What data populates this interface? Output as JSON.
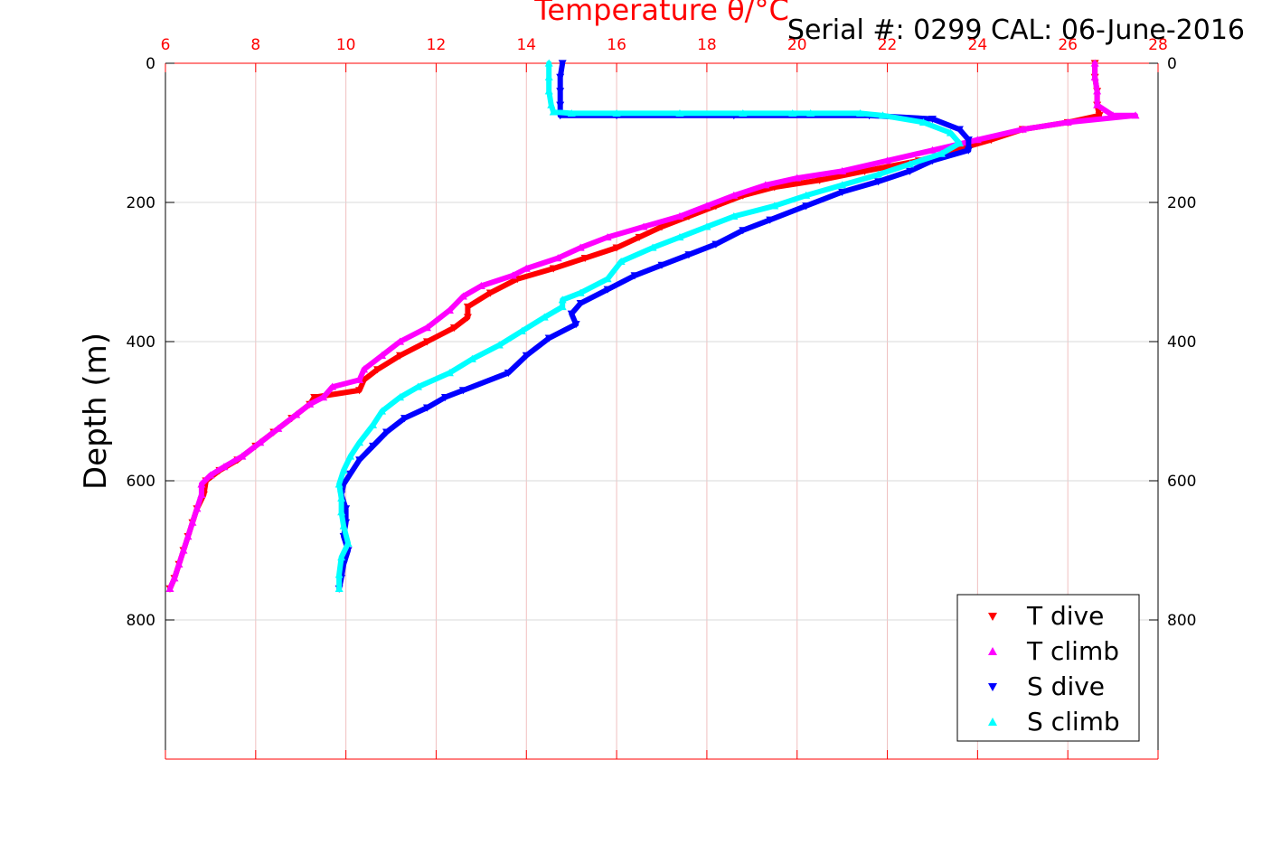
{
  "serial_text": "Serial #: 0299 CAL: 06-June-2016",
  "colors": {
    "axis_top": "#ff0000",
    "axis": "#000000",
    "grid_x": "#f0c0c0",
    "grid_y": "#d8d8d8",
    "t_dive": "#ff0000",
    "t_climb": "#ff00ff",
    "s_dive": "#0000ff",
    "s_climb": "#00ffff"
  },
  "chart_data": {
    "type": "scatter",
    "title": "Temperature θ/°C",
    "xlabel": "Temperature θ/°C",
    "ylabel": "Depth (m)",
    "x_axis_position": "top",
    "xlim": [
      6,
      28
    ],
    "ylim": [
      1000,
      0
    ],
    "y_reversed": true,
    "xticks": [
      6,
      8,
      10,
      12,
      14,
      16,
      18,
      20,
      22,
      24,
      26,
      28
    ],
    "yticks": [
      0,
      200,
      400,
      600,
      800
    ],
    "grid": true,
    "legend_position": "bottom-right",
    "series": [
      {
        "name": "T dive",
        "marker": "triangle-down",
        "color": "#ff0000",
        "points": [
          [
            26.6,
            0
          ],
          [
            26.6,
            20
          ],
          [
            26.65,
            40
          ],
          [
            26.65,
            60
          ],
          [
            26.7,
            75
          ],
          [
            26.0,
            85
          ],
          [
            25.0,
            95
          ],
          [
            24.3,
            110
          ],
          [
            23.5,
            125
          ],
          [
            22.7,
            140
          ],
          [
            21.5,
            155
          ],
          [
            20.5,
            168
          ],
          [
            19.5,
            178
          ],
          [
            18.8,
            190
          ],
          [
            18.2,
            205
          ],
          [
            17.6,
            220
          ],
          [
            17.0,
            235
          ],
          [
            16.5,
            250
          ],
          [
            16.0,
            265
          ],
          [
            15.3,
            280
          ],
          [
            14.6,
            295
          ],
          [
            13.8,
            310
          ],
          [
            13.2,
            330
          ],
          [
            12.7,
            350
          ],
          [
            12.7,
            365
          ],
          [
            12.4,
            380
          ],
          [
            11.8,
            400
          ],
          [
            11.2,
            420
          ],
          [
            10.7,
            440
          ],
          [
            10.4,
            455
          ],
          [
            10.3,
            470
          ],
          [
            9.3,
            480
          ],
          [
            9.2,
            490
          ],
          [
            8.8,
            510
          ],
          [
            8.4,
            530
          ],
          [
            8.0,
            550
          ],
          [
            7.6,
            570
          ],
          [
            7.2,
            585
          ],
          [
            6.9,
            600
          ],
          [
            6.85,
            620
          ],
          [
            6.7,
            640
          ],
          [
            6.6,
            660
          ],
          [
            6.5,
            680
          ],
          [
            6.4,
            700
          ],
          [
            6.3,
            720
          ],
          [
            6.2,
            740
          ],
          [
            6.1,
            755
          ]
        ]
      },
      {
        "name": "T climb",
        "marker": "triangle-up",
        "color": "#ff00ff",
        "points": [
          [
            26.6,
            0
          ],
          [
            26.6,
            20
          ],
          [
            26.65,
            40
          ],
          [
            26.65,
            60
          ],
          [
            27.0,
            75
          ],
          [
            27.5,
            75
          ],
          [
            26.0,
            85
          ],
          [
            25.0,
            95
          ],
          [
            24.0,
            110
          ],
          [
            23.0,
            125
          ],
          [
            22.0,
            140
          ],
          [
            21.0,
            155
          ],
          [
            20.0,
            165
          ],
          [
            19.3,
            175
          ],
          [
            18.6,
            190
          ],
          [
            18.0,
            205
          ],
          [
            17.4,
            220
          ],
          [
            16.6,
            235
          ],
          [
            15.8,
            250
          ],
          [
            15.2,
            265
          ],
          [
            14.7,
            280
          ],
          [
            14.0,
            295
          ],
          [
            13.7,
            305
          ],
          [
            13.0,
            320
          ],
          [
            12.6,
            335
          ],
          [
            12.3,
            355
          ],
          [
            11.8,
            380
          ],
          [
            11.2,
            400
          ],
          [
            10.8,
            420
          ],
          [
            10.4,
            440
          ],
          [
            10.3,
            455
          ],
          [
            9.7,
            465
          ],
          [
            9.5,
            480
          ],
          [
            9.2,
            490
          ],
          [
            8.9,
            505
          ],
          [
            8.5,
            525
          ],
          [
            8.1,
            545
          ],
          [
            7.7,
            565
          ],
          [
            7.3,
            580
          ],
          [
            7.0,
            592
          ],
          [
            6.8,
            605
          ],
          [
            6.8,
            620
          ],
          [
            6.7,
            640
          ],
          [
            6.6,
            660
          ],
          [
            6.5,
            680
          ],
          [
            6.4,
            700
          ],
          [
            6.3,
            720
          ],
          [
            6.2,
            740
          ],
          [
            6.1,
            755
          ]
        ]
      },
      {
        "name": "S dive",
        "marker": "triangle-down",
        "color": "#0000ff",
        "points": [
          [
            14.8,
            0
          ],
          [
            14.75,
            20
          ],
          [
            14.75,
            40
          ],
          [
            14.75,
            60
          ],
          [
            14.75,
            75
          ],
          [
            16.0,
            75
          ],
          [
            18.6,
            75
          ],
          [
            21.6,
            75
          ],
          [
            23.0,
            80
          ],
          [
            23.6,
            95
          ],
          [
            23.8,
            110
          ],
          [
            23.8,
            125
          ],
          [
            23.0,
            140
          ],
          [
            22.5,
            155
          ],
          [
            21.8,
            170
          ],
          [
            21.0,
            185
          ],
          [
            20.2,
            205
          ],
          [
            19.4,
            225
          ],
          [
            18.8,
            240
          ],
          [
            18.2,
            260
          ],
          [
            17.6,
            275
          ],
          [
            17.0,
            290
          ],
          [
            16.4,
            305
          ],
          [
            15.8,
            325
          ],
          [
            15.2,
            345
          ],
          [
            15.0,
            360
          ],
          [
            15.1,
            375
          ],
          [
            14.5,
            395
          ],
          [
            14.0,
            420
          ],
          [
            13.6,
            445
          ],
          [
            12.6,
            470
          ],
          [
            12.2,
            480
          ],
          [
            11.8,
            495
          ],
          [
            11.3,
            510
          ],
          [
            10.9,
            530
          ],
          [
            10.6,
            550
          ],
          [
            10.3,
            570
          ],
          [
            10.1,
            590
          ],
          [
            9.95,
            605
          ],
          [
            9.9,
            620
          ],
          [
            10.0,
            640
          ],
          [
            10.0,
            660
          ],
          [
            9.95,
            680
          ],
          [
            10.05,
            700
          ],
          [
            9.95,
            720
          ],
          [
            9.9,
            740
          ],
          [
            9.85,
            755
          ]
        ]
      },
      {
        "name": "S climb",
        "marker": "triangle-up",
        "color": "#00ffff",
        "points": [
          [
            14.5,
            0
          ],
          [
            14.5,
            20
          ],
          [
            14.5,
            40
          ],
          [
            14.55,
            60
          ],
          [
            14.6,
            70
          ],
          [
            15.0,
            72
          ],
          [
            16.0,
            72
          ],
          [
            17.4,
            72
          ],
          [
            18.8,
            72
          ],
          [
            19.9,
            72
          ],
          [
            20.3,
            72
          ],
          [
            21.4,
            72
          ],
          [
            21.9,
            75
          ],
          [
            22.8,
            85
          ],
          [
            23.4,
            100
          ],
          [
            23.6,
            115
          ],
          [
            23.2,
            130
          ],
          [
            22.5,
            145
          ],
          [
            21.8,
            160
          ],
          [
            21.0,
            175
          ],
          [
            20.2,
            190
          ],
          [
            19.5,
            205
          ],
          [
            18.6,
            220
          ],
          [
            18.0,
            235
          ],
          [
            17.4,
            250
          ],
          [
            16.8,
            265
          ],
          [
            16.1,
            285
          ],
          [
            15.8,
            310
          ],
          [
            15.2,
            330
          ],
          [
            14.8,
            340
          ],
          [
            14.8,
            350
          ],
          [
            14.4,
            365
          ],
          [
            13.9,
            385
          ],
          [
            13.4,
            405
          ],
          [
            12.8,
            425
          ],
          [
            12.3,
            445
          ],
          [
            11.6,
            465
          ],
          [
            11.2,
            480
          ],
          [
            10.8,
            500
          ],
          [
            10.6,
            520
          ],
          [
            10.3,
            545
          ],
          [
            10.1,
            565
          ],
          [
            9.95,
            585
          ],
          [
            9.85,
            605
          ],
          [
            9.9,
            625
          ],
          [
            9.9,
            645
          ],
          [
            9.95,
            665
          ],
          [
            10.05,
            690
          ],
          [
            9.9,
            710
          ],
          [
            9.85,
            735
          ],
          [
            9.85,
            755
          ]
        ]
      }
    ]
  }
}
